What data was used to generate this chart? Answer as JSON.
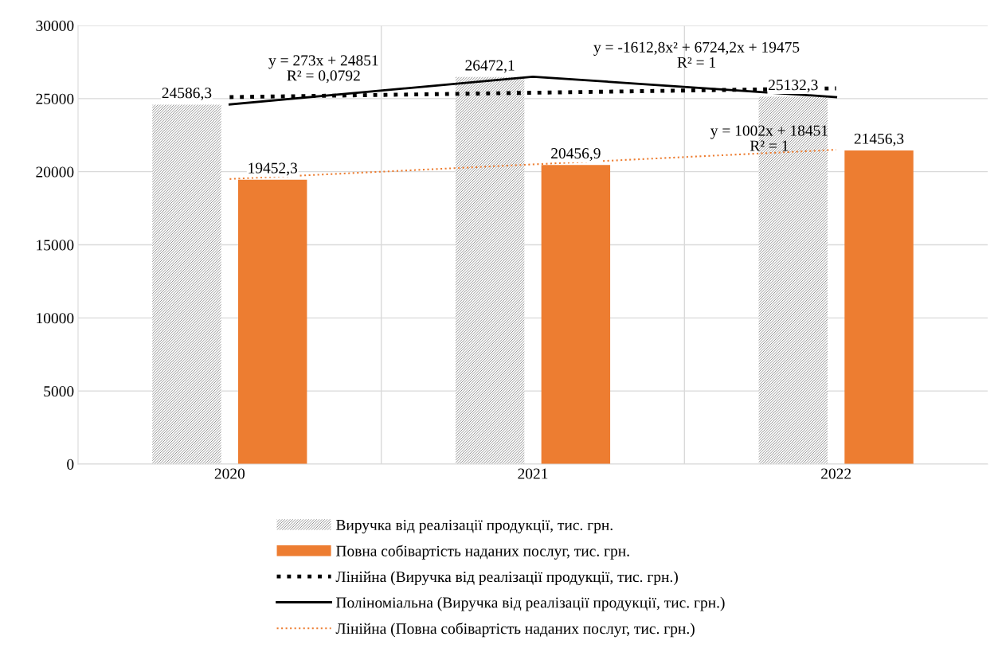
{
  "chart_data": {
    "type": "bar",
    "categories": [
      "2020",
      "2021",
      "2022"
    ],
    "series": [
      {
        "name": "Виручка від реалізації продукції, тис. грн.",
        "color": "#808080",
        "values": [
          24586.3,
          26472.1,
          25132.3
        ],
        "value_labels": [
          "24586,3",
          "26472,1",
          "25132,3"
        ]
      },
      {
        "name": "Повна собівартість наданих послуг, тис. грн.",
        "color": "#ed7d31",
        "values": [
          19452.3,
          20456.9,
          21456.3
        ],
        "value_labels": [
          "19452,3",
          "20456,9",
          "21456,3"
        ]
      },
      {
        "name": "Лінійна (Виручка від реалізації продукції, тис. грн.)",
        "type": "line",
        "color": "#000000",
        "line_style": "dotted",
        "values": [
          25100,
          25400,
          25700
        ]
      },
      {
        "name": "Поліноміальна (Виручка від реалізації продукції, тис. грн.)",
        "type": "line",
        "color": "#000000",
        "line_style": "solid",
        "values": [
          24600,
          26500,
          25100
        ]
      },
      {
        "name": "Лінійна (Повна собівартість наданих послуг, тис. грн.)",
        "type": "line",
        "color": "#ed7d31",
        "line_style": "dotted",
        "values": [
          19500,
          20500,
          21500
        ]
      }
    ],
    "ylim": [
      0,
      30000
    ],
    "yticks": [
      0,
      5000,
      10000,
      15000,
      20000,
      25000,
      30000
    ],
    "grid": true,
    "legend": "bottom",
    "annotations": [
      "y = 273x + 24851\nR² = 0,0792",
      "y = -1612,8x² + 6724,2x + 19475\nR² = 1",
      "y = 1002x + 18451\nR² = 1"
    ]
  }
}
